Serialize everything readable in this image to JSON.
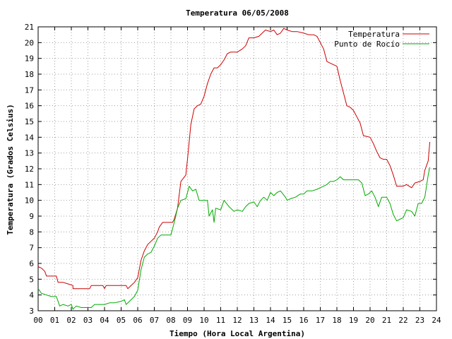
{
  "chart_data": {
    "type": "line",
    "title": "Temperatura 06/05/2008",
    "xlabel": "Tiempo (Hora Local Argentina)",
    "ylabel": "Temperatura (Grados Celsius)",
    "xlim": [
      0,
      24
    ],
    "ylim": [
      3,
      21
    ],
    "x_ticks": [
      "00",
      "01",
      "02",
      "03",
      "04",
      "05",
      "06",
      "07",
      "08",
      "09",
      "10",
      "11",
      "12",
      "13",
      "14",
      "15",
      "16",
      "17",
      "18",
      "19",
      "20",
      "21",
      "22",
      "23",
      "24"
    ],
    "y_ticks": [
      "3",
      "4",
      "5",
      "6",
      "7",
      "8",
      "9",
      "10",
      "11",
      "12",
      "13",
      "14",
      "15",
      "16",
      "17",
      "18",
      "19",
      "20",
      "21"
    ],
    "grid": true,
    "legend_position": "top-right",
    "series": [
      {
        "name": "Temperatura",
        "color": "#cc0000",
        "points": [
          [
            0.0,
            5.8
          ],
          [
            0.2,
            5.7
          ],
          [
            0.4,
            5.5
          ],
          [
            0.5,
            5.2
          ],
          [
            0.8,
            5.2
          ],
          [
            1.1,
            5.2
          ],
          [
            1.2,
            4.8
          ],
          [
            1.5,
            4.8
          ],
          [
            1.8,
            4.7
          ],
          [
            2.1,
            4.6
          ],
          [
            2.1,
            4.4
          ],
          [
            2.5,
            4.4
          ],
          [
            2.8,
            4.4
          ],
          [
            3.1,
            4.4
          ],
          [
            3.2,
            4.6
          ],
          [
            3.6,
            4.6
          ],
          [
            3.9,
            4.6
          ],
          [
            4.0,
            4.4
          ],
          [
            4.1,
            4.6
          ],
          [
            4.5,
            4.6
          ],
          [
            5.0,
            4.6
          ],
          [
            5.3,
            4.6
          ],
          [
            5.4,
            4.4
          ],
          [
            5.6,
            4.6
          ],
          [
            5.8,
            4.8
          ],
          [
            6.0,
            5.1
          ],
          [
            6.2,
            6.2
          ],
          [
            6.4,
            6.8
          ],
          [
            6.6,
            7.2
          ],
          [
            6.8,
            7.4
          ],
          [
            7.0,
            7.6
          ],
          [
            7.2,
            8.0
          ],
          [
            7.3,
            8.3
          ],
          [
            7.5,
            8.6
          ],
          [
            7.8,
            8.6
          ],
          [
            8.1,
            8.6
          ],
          [
            8.2,
            8.8
          ],
          [
            8.4,
            9.5
          ],
          [
            8.6,
            11.2
          ],
          [
            8.9,
            11.6
          ],
          [
            9.0,
            12.6
          ],
          [
            9.2,
            14.8
          ],
          [
            9.4,
            15.8
          ],
          [
            9.6,
            16.0
          ],
          [
            9.8,
            16.1
          ],
          [
            10.0,
            16.6
          ],
          [
            10.2,
            17.4
          ],
          [
            10.4,
            18.0
          ],
          [
            10.6,
            18.4
          ],
          [
            10.8,
            18.4
          ],
          [
            11.0,
            18.6
          ],
          [
            11.2,
            18.9
          ],
          [
            11.4,
            19.3
          ],
          [
            11.6,
            19.4
          ],
          [
            12.0,
            19.4
          ],
          [
            12.3,
            19.6
          ],
          [
            12.5,
            19.8
          ],
          [
            12.7,
            20.3
          ],
          [
            13.0,
            20.3
          ],
          [
            13.3,
            20.4
          ],
          [
            13.5,
            20.6
          ],
          [
            13.7,
            20.8
          ],
          [
            14.0,
            20.7
          ],
          [
            14.2,
            20.8
          ],
          [
            14.4,
            20.5
          ],
          [
            14.6,
            20.6
          ],
          [
            14.8,
            20.9
          ],
          [
            15.0,
            20.8
          ],
          [
            15.3,
            20.7
          ],
          [
            15.6,
            20.7
          ],
          [
            16.0,
            20.6
          ],
          [
            16.3,
            20.5
          ],
          [
            16.6,
            20.5
          ],
          [
            16.8,
            20.4
          ],
          [
            17.0,
            20.0
          ],
          [
            17.2,
            19.6
          ],
          [
            17.4,
            18.8
          ],
          [
            17.6,
            18.7
          ],
          [
            18.0,
            18.5
          ],
          [
            18.2,
            17.6
          ],
          [
            18.4,
            16.8
          ],
          [
            18.6,
            16.0
          ],
          [
            18.8,
            15.9
          ],
          [
            19.0,
            15.7
          ],
          [
            19.2,
            15.3
          ],
          [
            19.4,
            14.9
          ],
          [
            19.6,
            14.1
          ],
          [
            20.0,
            14.0
          ],
          [
            20.2,
            13.6
          ],
          [
            20.4,
            13.1
          ],
          [
            20.6,
            12.7
          ],
          [
            20.8,
            12.6
          ],
          [
            21.0,
            12.6
          ],
          [
            21.2,
            12.2
          ],
          [
            21.4,
            11.6
          ],
          [
            21.6,
            10.9
          ],
          [
            21.8,
            10.9
          ],
          [
            22.0,
            10.9
          ],
          [
            22.2,
            11.0
          ],
          [
            22.5,
            10.8
          ],
          [
            22.7,
            11.1
          ],
          [
            23.0,
            11.2
          ],
          [
            23.2,
            11.3
          ],
          [
            23.3,
            11.9
          ],
          [
            23.5,
            12.5
          ],
          [
            23.6,
            13.7
          ]
        ]
      },
      {
        "name": "Punto de Rocío",
        "color": "#00aa00",
        "points": [
          [
            0.0,
            4.4
          ],
          [
            0.2,
            4.1
          ],
          [
            0.5,
            4.0
          ],
          [
            0.8,
            3.9
          ],
          [
            1.1,
            3.9
          ],
          [
            1.2,
            3.6
          ],
          [
            1.3,
            3.3
          ],
          [
            1.5,
            3.4
          ],
          [
            1.8,
            3.3
          ],
          [
            2.0,
            3.4
          ],
          [
            2.1,
            3.1
          ],
          [
            2.3,
            3.3
          ],
          [
            2.6,
            3.2
          ],
          [
            3.0,
            3.2
          ],
          [
            3.2,
            3.2
          ],
          [
            3.4,
            3.4
          ],
          [
            3.7,
            3.4
          ],
          [
            4.0,
            3.4
          ],
          [
            4.3,
            3.5
          ],
          [
            4.6,
            3.5
          ],
          [
            5.0,
            3.6
          ],
          [
            5.2,
            3.7
          ],
          [
            5.3,
            3.4
          ],
          [
            5.5,
            3.6
          ],
          [
            5.8,
            3.9
          ],
          [
            6.0,
            4.3
          ],
          [
            6.2,
            5.6
          ],
          [
            6.4,
            6.4
          ],
          [
            6.6,
            6.6
          ],
          [
            6.8,
            6.7
          ],
          [
            7.0,
            7.1
          ],
          [
            7.2,
            7.6
          ],
          [
            7.4,
            7.8
          ],
          [
            8.0,
            7.8
          ],
          [
            8.2,
            8.6
          ],
          [
            8.4,
            9.5
          ],
          [
            8.6,
            10.0
          ],
          [
            8.9,
            10.1
          ],
          [
            9.0,
            10.5
          ],
          [
            9.1,
            10.9
          ],
          [
            9.3,
            10.6
          ],
          [
            9.5,
            10.7
          ],
          [
            9.7,
            10.0
          ],
          [
            9.9,
            10.0
          ],
          [
            10.2,
            10.0
          ],
          [
            10.3,
            9.0
          ],
          [
            10.5,
            9.4
          ],
          [
            10.6,
            8.6
          ],
          [
            10.7,
            9.5
          ],
          [
            11.0,
            9.4
          ],
          [
            11.2,
            10.0
          ],
          [
            11.5,
            9.6
          ],
          [
            11.8,
            9.3
          ],
          [
            12.0,
            9.4
          ],
          [
            12.3,
            9.3
          ],
          [
            12.5,
            9.6
          ],
          [
            12.7,
            9.8
          ],
          [
            13.0,
            9.9
          ],
          [
            13.2,
            9.6
          ],
          [
            13.4,
            10.0
          ],
          [
            13.6,
            10.2
          ],
          [
            13.8,
            10.0
          ],
          [
            14.0,
            10.5
          ],
          [
            14.2,
            10.3
          ],
          [
            14.4,
            10.5
          ],
          [
            14.6,
            10.6
          ],
          [
            14.9,
            10.2
          ],
          [
            15.0,
            10.0
          ],
          [
            15.2,
            10.1
          ],
          [
            15.5,
            10.2
          ],
          [
            15.8,
            10.4
          ],
          [
            16.0,
            10.4
          ],
          [
            16.2,
            10.6
          ],
          [
            16.5,
            10.6
          ],
          [
            16.8,
            10.7
          ],
          [
            17.0,
            10.8
          ],
          [
            17.2,
            10.9
          ],
          [
            17.4,
            11.0
          ],
          [
            17.6,
            11.2
          ],
          [
            17.8,
            11.2
          ],
          [
            18.0,
            11.3
          ],
          [
            18.2,
            11.5
          ],
          [
            18.4,
            11.3
          ],
          [
            18.7,
            11.3
          ],
          [
            19.0,
            11.3
          ],
          [
            19.3,
            11.3
          ],
          [
            19.5,
            11.1
          ],
          [
            19.7,
            10.3
          ],
          [
            19.9,
            10.4
          ],
          [
            20.1,
            10.6
          ],
          [
            20.3,
            10.2
          ],
          [
            20.5,
            9.6
          ],
          [
            20.7,
            10.2
          ],
          [
            21.0,
            10.2
          ],
          [
            21.2,
            9.8
          ],
          [
            21.4,
            9.1
          ],
          [
            21.6,
            8.7
          ],
          [
            21.8,
            8.8
          ],
          [
            22.0,
            8.9
          ],
          [
            22.2,
            9.4
          ],
          [
            22.5,
            9.3
          ],
          [
            22.7,
            9.0
          ],
          [
            22.9,
            9.8
          ],
          [
            23.1,
            9.8
          ],
          [
            23.3,
            10.2
          ],
          [
            23.5,
            11.6
          ],
          [
            23.6,
            12.1
          ]
        ]
      }
    ]
  }
}
